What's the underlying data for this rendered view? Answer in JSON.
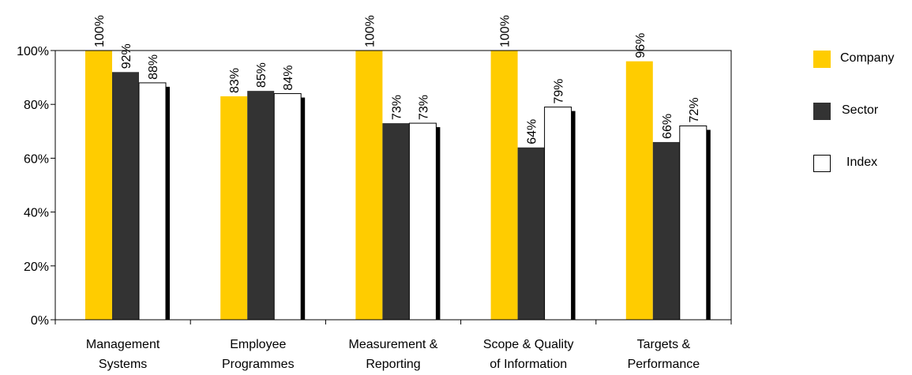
{
  "chart_data": {
    "type": "bar",
    "categories": [
      [
        "Management",
        "Systems"
      ],
      [
        "Employee",
        "Programmes"
      ],
      [
        "Measurement &",
        "Reporting"
      ],
      [
        "Scope & Quality",
        "of Information"
      ],
      [
        "Targets &",
        "Performance"
      ]
    ],
    "series": [
      {
        "name": "Company",
        "color": "#ffcc00",
        "values": [
          100,
          83,
          100,
          100,
          96
        ],
        "labels": [
          "100%",
          "83%",
          "100%",
          "100%",
          "96%"
        ]
      },
      {
        "name": "Sector",
        "color": "#333333",
        "values": [
          92,
          85,
          73,
          64,
          66
        ],
        "labels": [
          "92%",
          "85%",
          "73%",
          "64%",
          "66%"
        ]
      },
      {
        "name": "Index",
        "color": "#ffffff",
        "values": [
          88,
          84,
          73,
          79,
          72
        ],
        "labels": [
          "88%",
          "84%",
          "73%",
          "79%",
          "72%"
        ]
      }
    ],
    "ylim": [
      0,
      100
    ],
    "yticks": [
      "0%",
      "20%",
      "40%",
      "60%",
      "80%",
      "100%"
    ],
    "legend_position": "right",
    "grid": false
  }
}
